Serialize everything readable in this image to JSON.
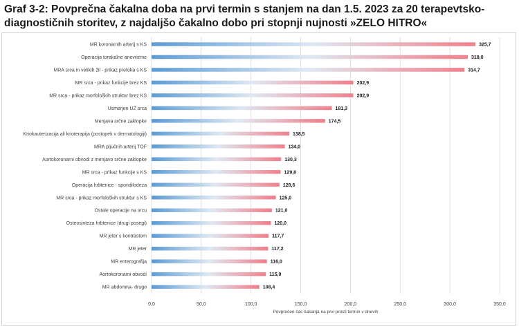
{
  "chart_data": {
    "type": "bar",
    "orientation": "horizontal",
    "title": "Graf 3-2: Povprečna čakalna doba na prvi termin s stanjem na dan 1.5. 2023 za 20 terapevtsko-diagnostičnih storitev, z najdaljšo čakalno dobo pri stopnji nujnosti »ZELO HITRO«",
    "xlabel": "Povprečen čas čakanja na prvi prosti termin v dnevih",
    "ylabel": "",
    "xlim": [
      0,
      350
    ],
    "xticks": [
      0,
      50,
      100,
      150,
      200,
      250,
      300,
      350
    ],
    "xtick_labels": [
      "0,0",
      "50,0",
      "100,0",
      "150,0",
      "200,0",
      "250,0",
      "300,0",
      "350,0"
    ],
    "grid": true,
    "colors": {
      "bar_start": "#5b9bd5",
      "bar_mid": "#dfe8f2",
      "bar_end": "#f07f8a"
    },
    "categories": [
      "MR koronarnih arterij s KS",
      "Operacija torakalne anevrizme",
      "MRA srca in velikih žil - prikaz pretoka s KS",
      "MR srca - prikaz funkcije brez KS",
      "MR srca - prikaz morfoloških struktur brez KS",
      "Usmerjen UZ srca",
      "Menjava srčne zaklopke",
      "Kriokauterizacija ali krioterapija (postopek v dermatologiji)",
      "MRA pljučnih arterij TOF",
      "Aortokoronarni obvodi z menjavo srčne zaklopke",
      "MR srca - prikaz funkcije s KS",
      "Operacija hrbtenice - spondilodeza",
      "MR srca - prikaz morfoloških struktur s KS",
      "Ostale operacije na srcu",
      "Osteosinteza hrbtenice (drugi posegi)",
      "MR jeter s kontrastom",
      "MR jeter",
      "MR enterografija",
      "Aortokoronarni obvodi",
      "MR abdomna- drugo"
    ],
    "values": [
      325.7,
      318.0,
      314.7,
      202.9,
      202.9,
      181.3,
      174.5,
      138.5,
      134.0,
      130.3,
      129.8,
      128.6,
      125.0,
      121.0,
      120.0,
      117.7,
      117.2,
      116.0,
      115.0,
      108.4
    ],
    "value_labels": [
      "325,7",
      "318,0",
      "314,7",
      "202,9",
      "202,9",
      "181,3",
      "174,5",
      "138,5",
      "134,0",
      "130,3",
      "129,8",
      "128,6",
      "125,0",
      "121,0",
      "120,0",
      "117,7",
      "117,2",
      "116,0",
      "115,0",
      "108,4"
    ]
  }
}
